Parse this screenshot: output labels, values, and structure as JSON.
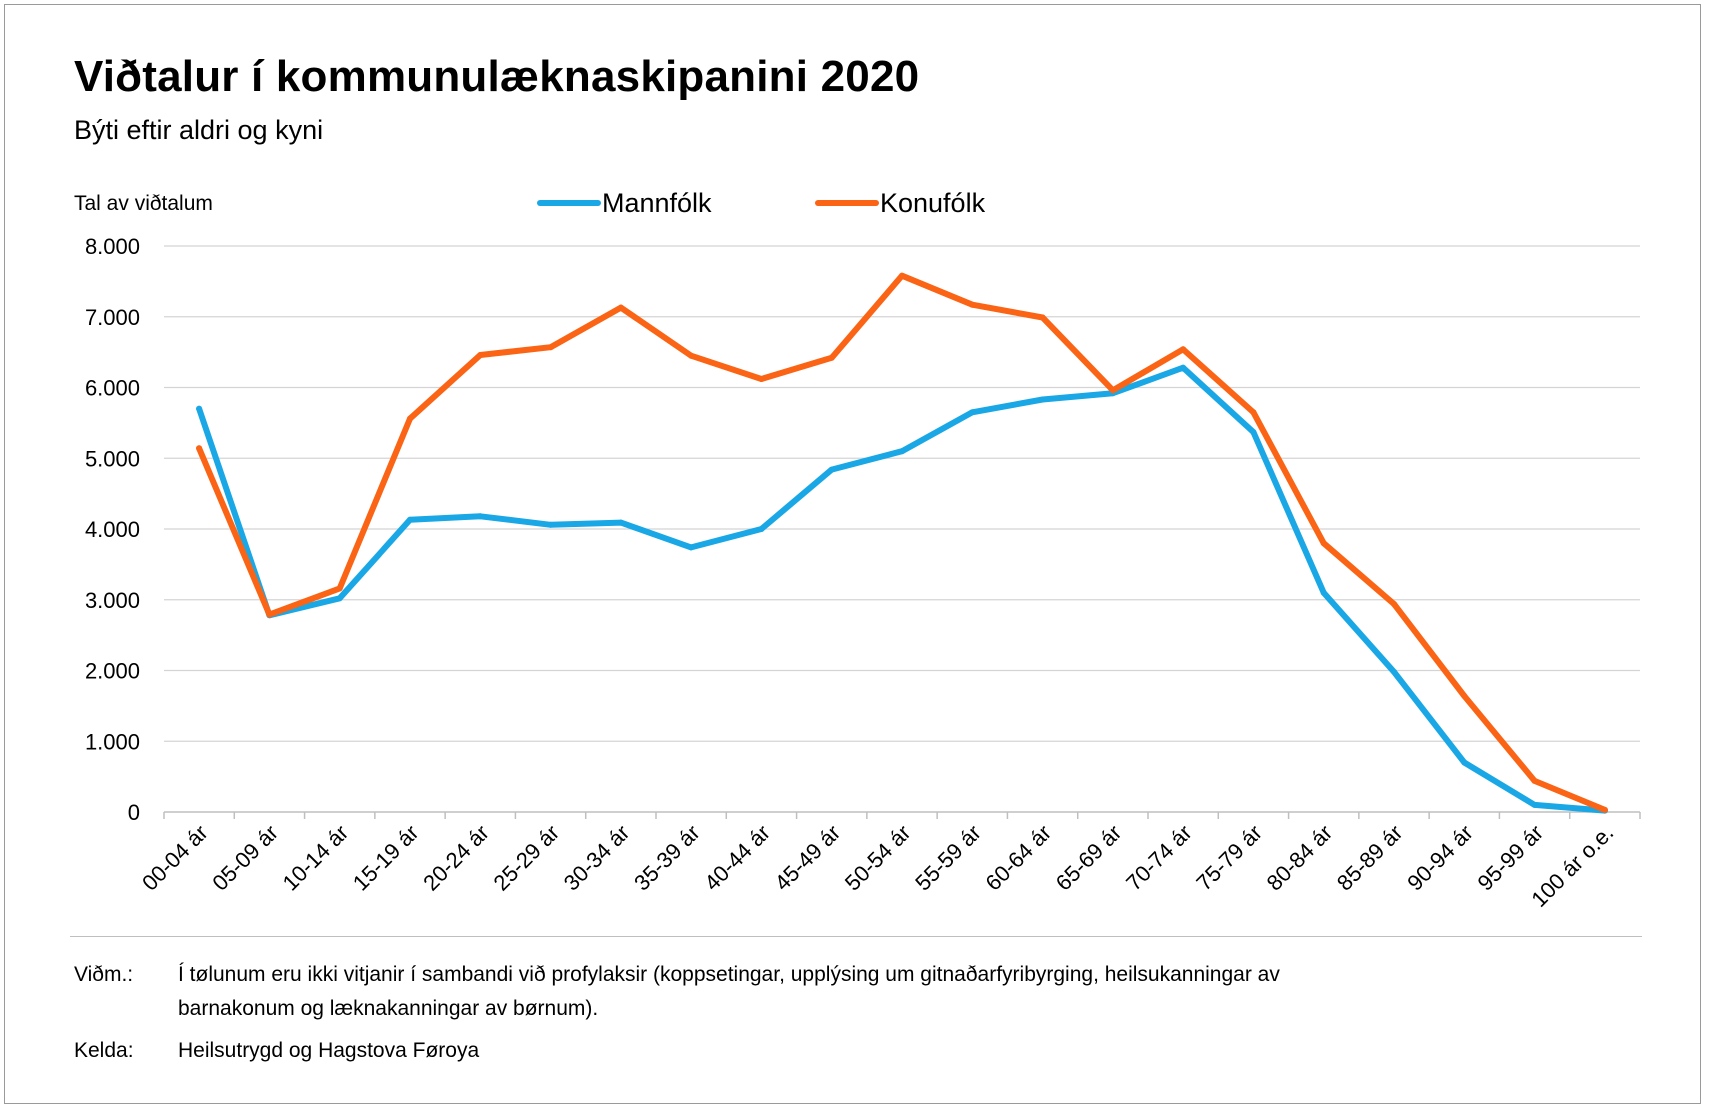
{
  "title": "Viðtalur í kommunulæknaskipanini 2020",
  "subtitle": "Býti eftir aldri og kyni",
  "notes": {
    "remark_label": "Viðm.:",
    "remark_line1": "Í tølunum eru ikki vitjanir í sambandi við profylaksir (koppsetingar, upplýsing um gitnaðarfyribyrging, heilsukanningar av",
    "remark_line2": "barnakonum og læknakanningar av børnum).",
    "source_label": "Kelda:",
    "source_text": "Heilsutrygd og Hagstova Føroya"
  },
  "chart_data": {
    "type": "line",
    "title": "Viðtalur í kommunulæknaskipanini 2020",
    "subtitle": "Býti eftir aldri og kyni",
    "ylabel": "Tal av viðtalum",
    "xlabel": "",
    "ylim": [
      0,
      8000
    ],
    "yticks": [
      0,
      1000,
      2000,
      3000,
      4000,
      5000,
      6000,
      7000,
      8000
    ],
    "ytick_labels": [
      "0",
      "1.000",
      "2.000",
      "3.000",
      "4.000",
      "5.000",
      "6.000",
      "7.000",
      "8.000"
    ],
    "grid": true,
    "legend_position": "top-center",
    "categories": [
      "00-04 ár",
      "05-09 ár",
      "10-14 ár",
      "15-19 ár",
      "20-24 ár",
      "25-29 ár",
      "30-34 ár",
      "35-39 ár",
      "40-44 ár",
      "45-49 ár",
      "50-54 ár",
      "55-59 ár",
      "60-64 ár",
      "65-69 ár",
      "70-74 ár",
      "75-79 ár",
      "80-84 ár",
      "85-89 ár",
      "90-94 ár",
      "95-99 ár",
      "100 ár o.e."
    ],
    "series": [
      {
        "name": "Mannfólk",
        "color": "#1aa7e6",
        "values": [
          5700,
          2780,
          3020,
          4130,
          4180,
          4060,
          4090,
          3740,
          4000,
          4840,
          5100,
          5650,
          5830,
          5920,
          6280,
          5370,
          3100,
          1980,
          700,
          100,
          20
        ]
      },
      {
        "name": "Konufólk",
        "color": "#fa6414",
        "values": [
          5140,
          2790,
          3160,
          5560,
          6460,
          6570,
          7130,
          6450,
          6120,
          6420,
          7580,
          7170,
          6990,
          5960,
          6540,
          5650,
          3800,
          2940,
          1640,
          440,
          30
        ]
      }
    ]
  }
}
